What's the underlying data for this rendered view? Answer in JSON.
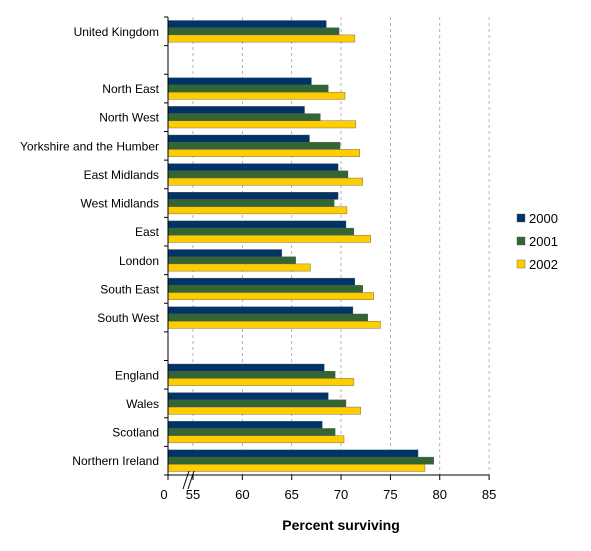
{
  "chart_data": {
    "type": "bar",
    "orientation": "horizontal",
    "xlabel": "Percent surviving",
    "xlim": [
      50,
      85
    ],
    "axis_break": true,
    "x_ticks": [
      "0",
      "55",
      "60",
      "65",
      "70",
      "75",
      "80",
      "85"
    ],
    "grid": "vertical dashed",
    "legend_position": "right",
    "categories": [
      "United Kingdom",
      "",
      "North East",
      "North West",
      "Yorkshire and the Humber",
      "East Midlands",
      "West Midlands",
      "East",
      "London",
      "South East",
      "South West",
      "",
      "England",
      "Wales",
      "Scotland",
      "Northern Ireland"
    ],
    "series": [
      {
        "name": "2000",
        "color": "#003366",
        "values": [
          68.5,
          null,
          67.0,
          66.3,
          66.8,
          69.7,
          69.7,
          70.5,
          64.0,
          71.4,
          71.2,
          null,
          68.3,
          68.7,
          68.1,
          77.8
        ]
      },
      {
        "name": "2001",
        "color": "#336633",
        "values": [
          69.8,
          null,
          68.7,
          67.9,
          69.9,
          70.7,
          69.3,
          71.3,
          65.4,
          72.2,
          72.7,
          null,
          69.4,
          70.5,
          69.4,
          79.4
        ]
      },
      {
        "name": "2002",
        "color": "#FFCC00",
        "values": [
          71.4,
          null,
          70.4,
          71.5,
          71.9,
          72.2,
          70.6,
          73.0,
          66.9,
          73.3,
          74.0,
          null,
          71.3,
          72.0,
          70.3,
          78.5
        ]
      }
    ]
  }
}
